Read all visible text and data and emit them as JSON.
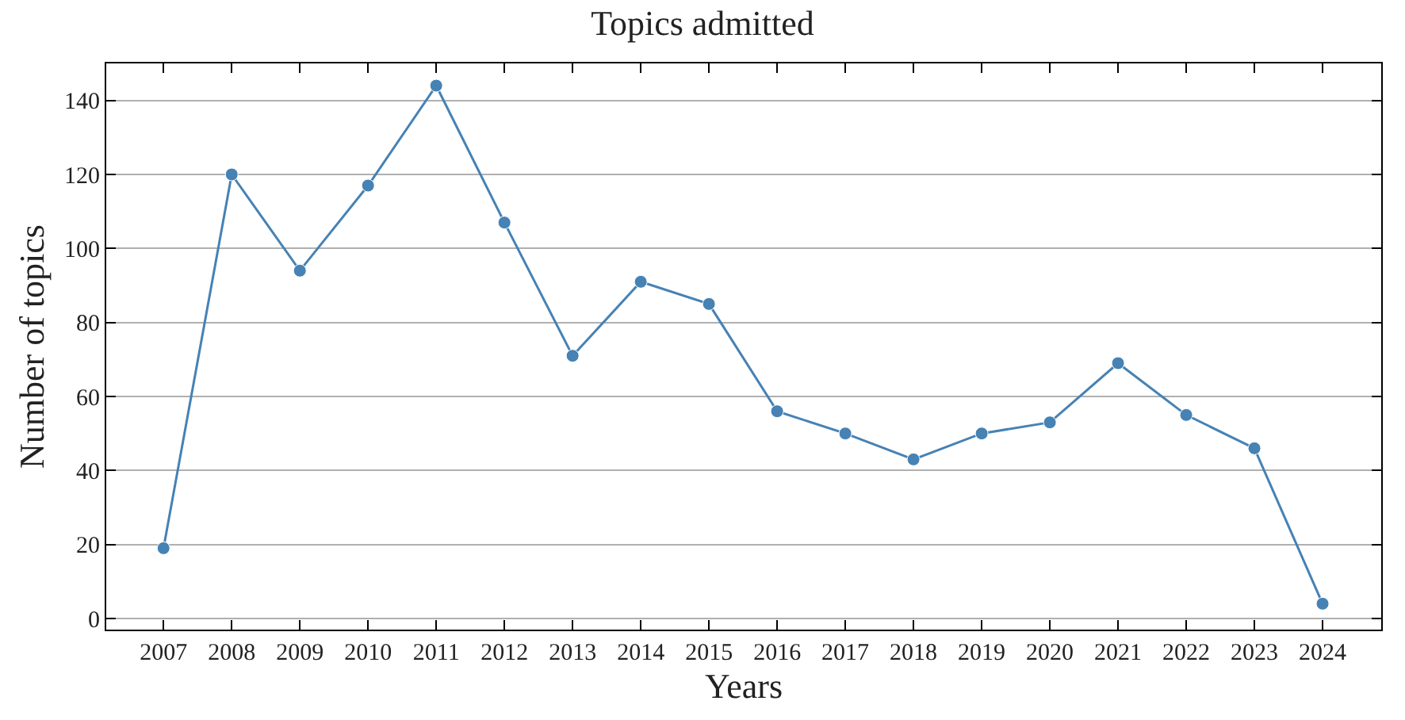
{
  "chart_data": {
    "type": "line",
    "title": "Topics admitted",
    "xlabel": "Years",
    "ylabel": "Number of topics",
    "x": [
      2007,
      2008,
      2009,
      2010,
      2011,
      2012,
      2013,
      2014,
      2015,
      2016,
      2017,
      2018,
      2019,
      2020,
      2021,
      2022,
      2023,
      2024
    ],
    "series": [
      {
        "color": "#4682b4",
        "values": [
          19,
          120,
          94,
          117,
          144,
          107,
          71,
          91,
          85,
          56,
          50,
          43,
          50,
          53,
          69,
          55,
          46,
          4
        ]
      }
    ],
    "xlim": [
      2006.16,
      2024.86
    ],
    "xticks": [
      2007,
      2008,
      2009,
      2010,
      2011,
      2012,
      2013,
      2014,
      2015,
      2016,
      2017,
      2018,
      2019,
      2020,
      2021,
      2022,
      2023,
      2024
    ],
    "ylim": [
      -3,
      150
    ],
    "yticks": [
      0,
      20,
      40,
      60,
      80,
      100,
      120,
      140
    ],
    "grid": "y",
    "marker": "circle",
    "line_style": "solid"
  }
}
